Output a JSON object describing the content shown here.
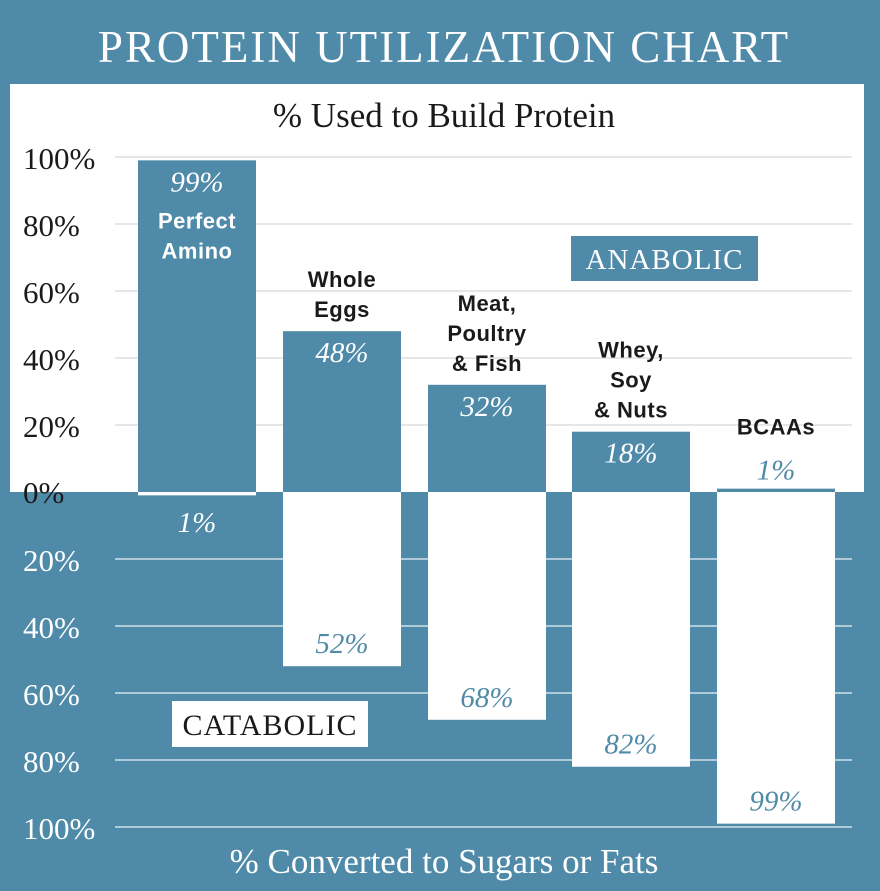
{
  "chart_data": {
    "type": "bar",
    "title": "PROTEIN UTILIZATION CHART",
    "top_axis_label": "% Used to Build Protein",
    "bottom_axis_label": "% Converted to Sugars or Fats",
    "y_ticks_top": [
      "100%",
      "80%",
      "60%",
      "40%",
      "20%"
    ],
    "y_tick_zero": "0%",
    "y_ticks_bottom": [
      "20%",
      "40%",
      "60%",
      "80%",
      "100%"
    ],
    "ylim": [
      -100,
      100
    ],
    "annotations": {
      "anabolic": "ANABOLIC",
      "catabolic": "CATABOLIC"
    },
    "categories": [
      {
        "name": [
          "Perfect",
          "Amino"
        ],
        "used": 99,
        "used_label": "99%",
        "converted": 1,
        "converted_label": "1%"
      },
      {
        "name": [
          "Whole",
          "Eggs"
        ],
        "used": 48,
        "used_label": "48%",
        "converted": 52,
        "converted_label": "52%"
      },
      {
        "name": [
          "Meat,",
          "Poultry",
          "& Fish"
        ],
        "used": 32,
        "used_label": "32%",
        "converted": 68,
        "converted_label": "68%"
      },
      {
        "name": [
          "Whey,",
          "Soy",
          "& Nuts"
        ],
        "used": 18,
        "used_label": "18%",
        "converted": 82,
        "converted_label": "82%"
      },
      {
        "name": [
          "BCAAs"
        ],
        "used": 1,
        "used_label": "1%",
        "converted": 99,
        "converted_label": "99%"
      }
    ]
  },
  "colors": {
    "brand_teal": "#4f8aa8",
    "white": "#ffffff",
    "text_dark": "#1a1a1a",
    "grid_light": "#d6d6d6",
    "grid_on_teal": "#e9f0f4"
  }
}
